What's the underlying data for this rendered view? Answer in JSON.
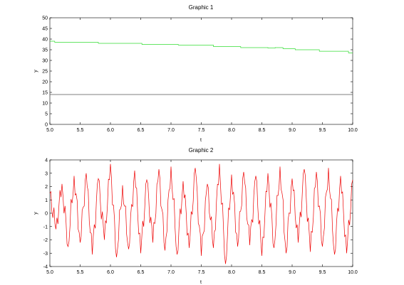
{
  "chart_data": [
    {
      "type": "line",
      "title": "Graphic 1",
      "xlabel": "t",
      "ylabel": "y",
      "xlim": [
        5.0,
        10.0
      ],
      "ylim": [
        0,
        50
      ],
      "xticks": [
        "5.0",
        "5.5",
        "6.0",
        "6.5",
        "7.0",
        "7.5",
        "8.0",
        "8.5",
        "9.0",
        "9.5",
        "10.0"
      ],
      "yticks": [
        "0",
        "5",
        "10",
        "15",
        "20",
        "25",
        "30",
        "35",
        "40",
        "45",
        "50"
      ],
      "grid": false,
      "series": [
        {
          "color": "#33dd33",
          "step": true,
          "x": [
            5.0,
            5.08,
            5.8,
            6.52,
            7.12,
            7.7,
            8.15,
            8.6,
            8.72,
            8.85,
            9.05,
            9.45,
            9.93,
            10.0
          ],
          "y": [
            39.0,
            38.5,
            38.0,
            37.5,
            37.2,
            36.5,
            36.0,
            35.8,
            36.0,
            35.5,
            35.0,
            34.3,
            33.5,
            33.5
          ]
        },
        {
          "color": "#555555",
          "x": [
            5.0,
            10.0
          ],
          "y": [
            14.0,
            14.0
          ]
        }
      ]
    },
    {
      "type": "line",
      "title": "Graphic 2",
      "xlabel": "t",
      "ylabel": "y",
      "xlim": [
        5.0,
        10.0
      ],
      "ylim": [
        -4,
        4
      ],
      "xticks": [
        "5.0",
        "5.5",
        "6.0",
        "6.5",
        "7.0",
        "7.5",
        "8.0",
        "8.5",
        "9.0",
        "9.5",
        "10.0"
      ],
      "yticks": [
        "-4",
        "-3",
        "-2",
        "-1",
        "0",
        "1",
        "2",
        "3",
        "4"
      ],
      "grid": false,
      "series": [
        {
          "color": "#ee0000",
          "x": [
            5.0,
            5.1,
            5.2,
            5.3,
            5.4,
            5.5,
            5.6,
            5.7,
            5.8,
            5.9,
            6.0,
            6.1,
            6.2,
            6.3,
            6.4,
            6.5,
            6.6,
            6.7,
            6.8,
            6.9,
            7.0,
            7.1,
            7.2,
            7.3,
            7.4,
            7.5,
            7.6,
            7.7,
            7.8,
            7.9,
            8.0,
            8.1,
            8.2,
            8.3,
            8.4,
            8.5,
            8.6,
            8.7,
            8.8,
            8.9,
            9.0,
            9.1,
            9.2,
            9.3,
            9.4,
            9.5,
            9.6,
            9.7,
            9.8,
            9.9,
            10.0
          ],
          "y": [
            1.5,
            -1.2,
            2.2,
            -2.5,
            2.8,
            -2.2,
            3.0,
            -3.1,
            2.6,
            -2.0,
            3.7,
            -3.3,
            2.1,
            -2.7,
            3.2,
            -3.0,
            2.5,
            -2.2,
            3.3,
            -2.8,
            3.5,
            -3.1,
            2.4,
            -2.6,
            3.4,
            -3.2,
            2.2,
            -2.6,
            3.7,
            -3.8,
            2.9,
            -2.5,
            3.1,
            -2.4,
            2.8,
            -3.2,
            3.0,
            -2.6,
            3.5,
            -3.0,
            2.6,
            -2.2,
            3.3,
            -2.9,
            3.1,
            -2.5,
            3.4,
            -3.1,
            2.8,
            -3.0,
            2.5
          ]
        }
      ]
    }
  ]
}
